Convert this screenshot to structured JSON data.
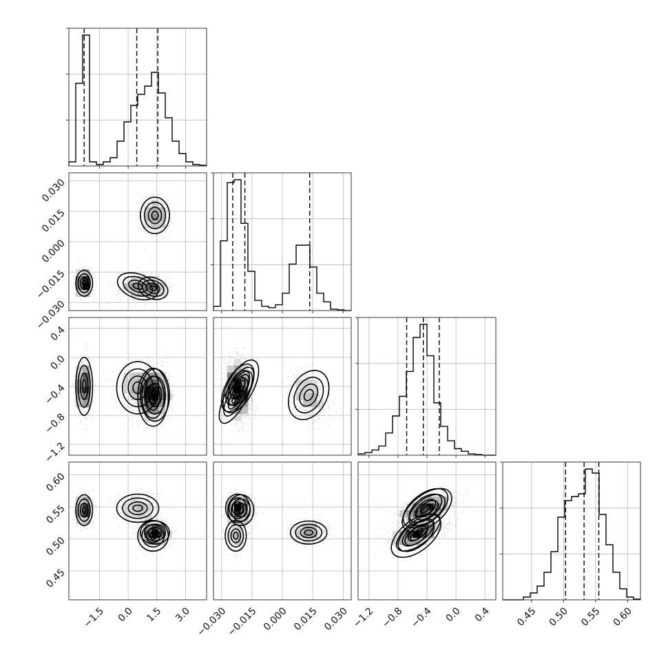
{
  "chart_data": {
    "type": "corner",
    "n_parameters": 4,
    "grid": true,
    "parameters": [
      {
        "ticks": [
          -1.5,
          0.0,
          1.5,
          3.0
        ],
        "tick_labels": [
          "−1.5",
          "0.0",
          "1.5",
          "3.0"
        ],
        "range": [
          -3.1,
          4.1
        ],
        "quantiles": [
          -2.3,
          0.45,
          1.55
        ],
        "histogram": {
          "start": -3.1,
          "step": 0.36,
          "counts": [
            0.03,
            0.6,
            0.95,
            0.03,
            0.01,
            0.03,
            0.06,
            0.18,
            0.32,
            0.44,
            0.52,
            0.58,
            0.68,
            0.53,
            0.35,
            0.18,
            0.09,
            0.03,
            0.01,
            0.005
          ]
        }
      },
      {
        "ticks": [
          -0.03,
          -0.015,
          0.0,
          0.015,
          0.03
        ],
        "tick_labels": [
          "−0.030",
          "−0.015",
          "0.000",
          "0.015",
          "0.030"
        ],
        "range": [
          -0.034,
          0.034
        ],
        "quantiles": [
          -0.0245,
          -0.0185,
          0.0135
        ],
        "histogram": {
          "start": -0.034,
          "step": 0.0034,
          "counts": [
            0.03,
            0.48,
            0.88,
            0.9,
            0.6,
            0.27,
            0.07,
            0.03,
            0.02,
            0.04,
            0.12,
            0.32,
            0.45,
            0.45,
            0.3,
            0.12,
            0.06,
            0.01,
            0.005,
            0.0
          ]
        }
      },
      {
        "ticks": [
          -1.2,
          -0.8,
          -0.4,
          0.0,
          0.4
        ],
        "tick_labels": [
          "−1.2",
          "−0.8",
          "−0.4",
          "0.0",
          "0.4"
        ],
        "range": [
          -1.35,
          0.55
        ],
        "quantiles": [
          -0.68,
          -0.45,
          -0.23
        ],
        "histogram": {
          "start": -1.35,
          "step": 0.095,
          "counts": [
            0.01,
            0.02,
            0.04,
            0.07,
            0.17,
            0.3,
            0.45,
            0.64,
            0.9,
            1.0,
            0.76,
            0.4,
            0.22,
            0.11,
            0.05,
            0.03,
            0.01,
            0.005,
            0.0,
            0.0
          ]
        }
      },
      {
        "ticks": [
          0.45,
          0.5,
          0.55,
          0.6
        ],
        "tick_labels": [
          "0.45",
          "0.50",
          "0.55",
          "0.60"
        ],
        "range": [
          0.405,
          0.62
        ],
        "quantiles": [
          0.503,
          0.532,
          0.555
        ],
        "histogram": {
          "start": 0.405,
          "step": 0.01075,
          "counts": [
            0.0,
            0.0,
            0.0,
            0.02,
            0.05,
            0.1,
            0.2,
            0.35,
            0.6,
            0.72,
            0.75,
            0.77,
            0.95,
            0.92,
            0.62,
            0.4,
            0.2,
            0.08,
            0.02,
            0.005
          ]
        }
      }
    ],
    "modes": [
      {
        "param": [
          -2.3,
          -0.0205,
          -0.4,
          0.545
        ],
        "sd": [
          0.22,
          0.0032,
          0.2,
          0.012
        ],
        "weight": 0.28
      },
      {
        "param": [
          0.5,
          -0.022,
          -0.42,
          0.548
        ],
        "sd": [
          0.55,
          0.003,
          0.18,
          0.011
        ],
        "weight": 0.25
      },
      {
        "param": [
          1.3,
          -0.023,
          -0.55,
          0.505
        ],
        "sd": [
          0.4,
          0.0026,
          0.2,
          0.012
        ],
        "weight": 0.18
      },
      {
        "param": [
          1.4,
          0.013,
          -0.52,
          0.51
        ],
        "sd": [
          0.38,
          0.0045,
          0.18,
          0.009
        ],
        "weight": 0.29
      }
    ]
  }
}
